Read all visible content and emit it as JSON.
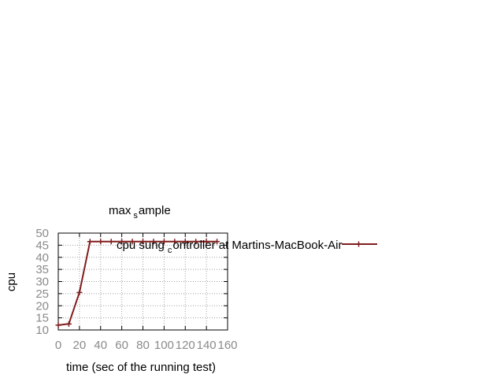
{
  "chart_data": {
    "type": "line",
    "title_parts": {
      "pre": "max",
      "sub": "s",
      "post": "ample"
    },
    "xlabel": "time (sec of the running test)",
    "ylabel": "cpu",
    "xlim": [
      0,
      160
    ],
    "ylim": [
      10,
      50
    ],
    "x_ticks": [
      0,
      20,
      40,
      60,
      80,
      100,
      120,
      140,
      160
    ],
    "y_ticks": [
      10,
      15,
      20,
      25,
      30,
      35,
      40,
      45,
      50
    ],
    "grid": true,
    "legend_position": "top-right",
    "series": [
      {
        "legend_parts": {
          "pre": "cpu sung",
          "sub": "c",
          "post": "ontroller at Martins-MacBook-Air"
        },
        "color": "#7f1d1d",
        "marker": "plus",
        "x": [
          0,
          10,
          20,
          30,
          40,
          50,
          60,
          70,
          80,
          90,
          100,
          110,
          120,
          130,
          140,
          150
        ],
        "y": [
          12,
          12.5,
          25.5,
          46.5,
          46.5,
          46.5,
          46.5,
          46.5,
          46.5,
          46.5,
          46.5,
          46.5,
          46.5,
          46.5,
          46.5,
          46.5
        ]
      }
    ]
  }
}
